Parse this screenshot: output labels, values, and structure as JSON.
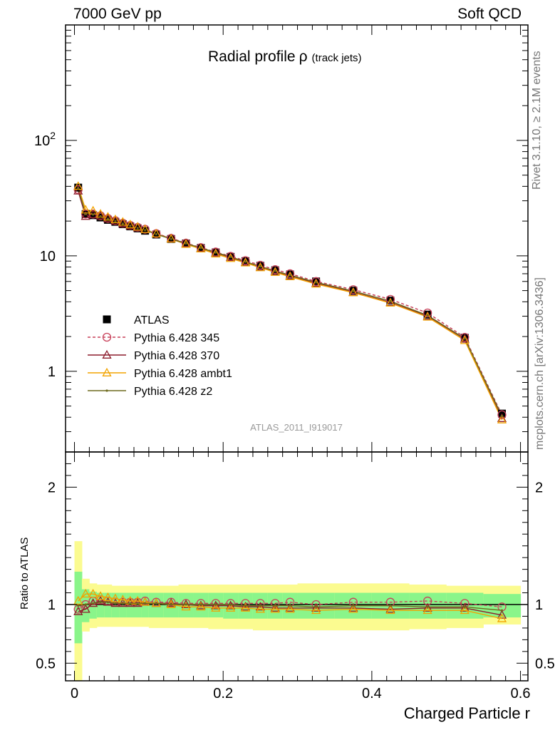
{
  "header": {
    "left": "7000 GeV pp",
    "right": "Soft QCD"
  },
  "side_labels": {
    "rivet": "Rivet 3.1.10, ≥ 2.1M events",
    "mcplots": "mcplots.cern.ch [arXiv:1306.3436]"
  },
  "chart_data": [
    {
      "type": "line",
      "title": "Radial profile",
      "title_symbol": "ρ",
      "title_suffix": "(track jets)",
      "watermark": "ATLAS_2011_I919017",
      "xlabel": "",
      "ylabel": "",
      "xlim": [
        -0.012,
        0.61
      ],
      "ylim": [
        0.2,
        1000
      ],
      "yscale": "log",
      "yticks": [
        1,
        10,
        100
      ],
      "yticklabels": [
        "1",
        "10",
        "10^2"
      ],
      "legend_position": "middle-left",
      "x": [
        0.005,
        0.015,
        0.025,
        0.035,
        0.045,
        0.055,
        0.065,
        0.075,
        0.085,
        0.095,
        0.11,
        0.13,
        0.15,
        0.17,
        0.19,
        0.21,
        0.23,
        0.25,
        0.27,
        0.29,
        0.325,
        0.375,
        0.425,
        0.475,
        0.525,
        0.575
      ],
      "series": [
        {
          "name": "ATLAS",
          "color": "#000000",
          "marker": "square",
          "values": [
            39,
            23,
            22.5,
            21.5,
            20.5,
            19.7,
            18.8,
            18,
            17.3,
            16.5,
            15.3,
            14,
            12.8,
            11.7,
            10.7,
            9.8,
            9,
            8.2,
            7.5,
            6.9,
            6,
            5,
            4.1,
            3.1,
            1.95,
            0.43
          ]
        },
        {
          "name": "Pythia 6.428 345",
          "color": "#c8415a",
          "marker": "circle",
          "dash": true,
          "values": [
            37.5,
            23,
            23,
            22.3,
            21.1,
            20.2,
            19.2,
            18.4,
            17.7,
            17,
            15.6,
            14.2,
            12.9,
            11.8,
            10.8,
            9.9,
            9.1,
            8.3,
            7.6,
            7,
            6,
            5.1,
            4.2,
            3.2,
            1.97,
            0.42
          ]
        },
        {
          "name": "Pythia 6.428 370",
          "color": "#8c1c2c",
          "marker": "triangle",
          "values": [
            36.5,
            22,
            22.8,
            22.2,
            21,
            20,
            19,
            18.2,
            17.5,
            16.9,
            15.5,
            14.1,
            12.8,
            11.6,
            10.6,
            9.7,
            8.8,
            8,
            7.3,
            6.7,
            5.8,
            4.85,
            3.95,
            3,
            1.9,
            0.39
          ]
        },
        {
          "name": "Pythia 6.428 ambt1",
          "color": "#f2a300",
          "marker": "triangle",
          "values": [
            40,
            25,
            24.5,
            23,
            21.7,
            20.6,
            19.6,
            18.6,
            17.8,
            16.9,
            15.5,
            14,
            12.6,
            11.5,
            10.4,
            9.5,
            8.7,
            7.9,
            7.2,
            6.6,
            5.7,
            4.8,
            3.9,
            2.95,
            1.85,
            0.38
          ]
        },
        {
          "name": "Pythia 6.428 z2",
          "color": "#6e6a1e",
          "marker": "dot",
          "values": [
            38.5,
            23,
            22.8,
            22,
            20.9,
            20,
            19,
            18.2,
            17.4,
            16.7,
            15.4,
            14,
            12.8,
            11.7,
            10.7,
            9.8,
            8.9,
            8.1,
            7.4,
            6.8,
            5.9,
            4.95,
            4.05,
            3.05,
            1.92,
            0.41
          ]
        }
      ]
    },
    {
      "type": "line",
      "xlabel": "Charged Particle r",
      "ylabel": "Ratio to ATLAS",
      "xlim": [
        -0.012,
        0.61
      ],
      "ylim": [
        0.35,
        2.3
      ],
      "xticks": [
        0,
        0.2,
        0.4,
        0.6
      ],
      "xticklabels": [
        "0",
        "0.2",
        "0.4",
        "0.6"
      ],
      "yticks": [
        0.5,
        1,
        2
      ],
      "yticklabels": [
        "0.5",
        "1",
        "2"
      ],
      "bin_edges": [
        0,
        0.01,
        0.02,
        0.03,
        0.04,
        0.05,
        0.06,
        0.07,
        0.08,
        0.09,
        0.1,
        0.12,
        0.14,
        0.16,
        0.18,
        0.2,
        0.22,
        0.24,
        0.26,
        0.28,
        0.3,
        0.35,
        0.4,
        0.45,
        0.5,
        0.55,
        0.6
      ],
      "bands": {
        "stat_low": [
          0.67,
          0.85,
          0.88,
          0.89,
          0.89,
          0.89,
          0.89,
          0.89,
          0.89,
          0.89,
          0.89,
          0.89,
          0.89,
          0.89,
          0.89,
          0.88,
          0.88,
          0.88,
          0.88,
          0.88,
          0.88,
          0.88,
          0.88,
          0.88,
          0.88,
          0.89
        ],
        "stat_high": [
          1.28,
          1.13,
          1.11,
          1.1,
          1.1,
          1.1,
          1.1,
          1.1,
          1.1,
          1.1,
          1.1,
          1.1,
          1.1,
          1.1,
          1.1,
          1.1,
          1.1,
          1.1,
          1.1,
          1.1,
          1.1,
          1.1,
          1.1,
          1.1,
          1.1,
          1.09
        ],
        "syst_low": [
          0.35,
          0.77,
          0.8,
          0.81,
          0.81,
          0.81,
          0.81,
          0.81,
          0.81,
          0.81,
          0.8,
          0.8,
          0.8,
          0.8,
          0.79,
          0.79,
          0.79,
          0.78,
          0.78,
          0.78,
          0.78,
          0.78,
          0.78,
          0.79,
          0.8,
          0.83
        ],
        "syst_high": [
          1.54,
          1.22,
          1.18,
          1.17,
          1.17,
          1.16,
          1.16,
          1.16,
          1.16,
          1.16,
          1.16,
          1.16,
          1.17,
          1.17,
          1.17,
          1.17,
          1.17,
          1.17,
          1.17,
          1.17,
          1.18,
          1.18,
          1.18,
          1.17,
          1.16,
          1.16
        ],
        "stat_color": "#8af58a",
        "syst_color": "#fbfb90"
      },
      "x": [
        0.005,
        0.015,
        0.025,
        0.035,
        0.045,
        0.055,
        0.065,
        0.075,
        0.085,
        0.095,
        0.11,
        0.13,
        0.15,
        0.17,
        0.19,
        0.21,
        0.23,
        0.25,
        0.27,
        0.29,
        0.325,
        0.375,
        0.425,
        0.475,
        0.525,
        0.575
      ],
      "series": [
        {
          "name": "Pythia 6.428 345",
          "color": "#c8415a",
          "marker": "circle",
          "dash": true,
          "values": [
            0.96,
            1.0,
            1.03,
            1.04,
            1.03,
            1.02,
            1.02,
            1.02,
            1.02,
            1.03,
            1.02,
            1.02,
            1.01,
            1.01,
            1.01,
            1.01,
            1.01,
            1.01,
            1.01,
            1.02,
            1.0,
            1.02,
            1.02,
            1.03,
            1.01,
            0.98
          ]
        },
        {
          "name": "Pythia 6.428 370",
          "color": "#8c1c2c",
          "marker": "triangle",
          "values": [
            0.94,
            0.96,
            1.01,
            1.03,
            1.02,
            1.01,
            1.01,
            1.01,
            1.01,
            1.02,
            1.01,
            1.01,
            1.0,
            0.99,
            0.99,
            0.99,
            0.98,
            0.98,
            0.97,
            0.97,
            0.97,
            0.97,
            0.96,
            0.97,
            0.97,
            0.91
          ]
        },
        {
          "name": "Pythia 6.428 ambt1",
          "color": "#f2a300",
          "marker": "triangle",
          "values": [
            1.03,
            1.09,
            1.09,
            1.07,
            1.06,
            1.05,
            1.04,
            1.03,
            1.03,
            1.02,
            1.01,
            1.0,
            0.98,
            0.98,
            0.97,
            0.97,
            0.97,
            0.96,
            0.96,
            0.96,
            0.95,
            0.96,
            0.95,
            0.95,
            0.95,
            0.88
          ]
        },
        {
          "name": "Pythia 6.428 z2",
          "color": "#6e6a1e",
          "marker": "dot",
          "values": [
            0.99,
            1.0,
            1.01,
            1.02,
            1.02,
            1.01,
            1.01,
            1.01,
            1.01,
            1.01,
            1.01,
            1.0,
            1.0,
            1.0,
            1.0,
            1.0,
            0.99,
            0.99,
            0.99,
            0.99,
            0.98,
            0.99,
            0.99,
            0.98,
            0.98,
            0.95
          ]
        }
      ]
    }
  ]
}
